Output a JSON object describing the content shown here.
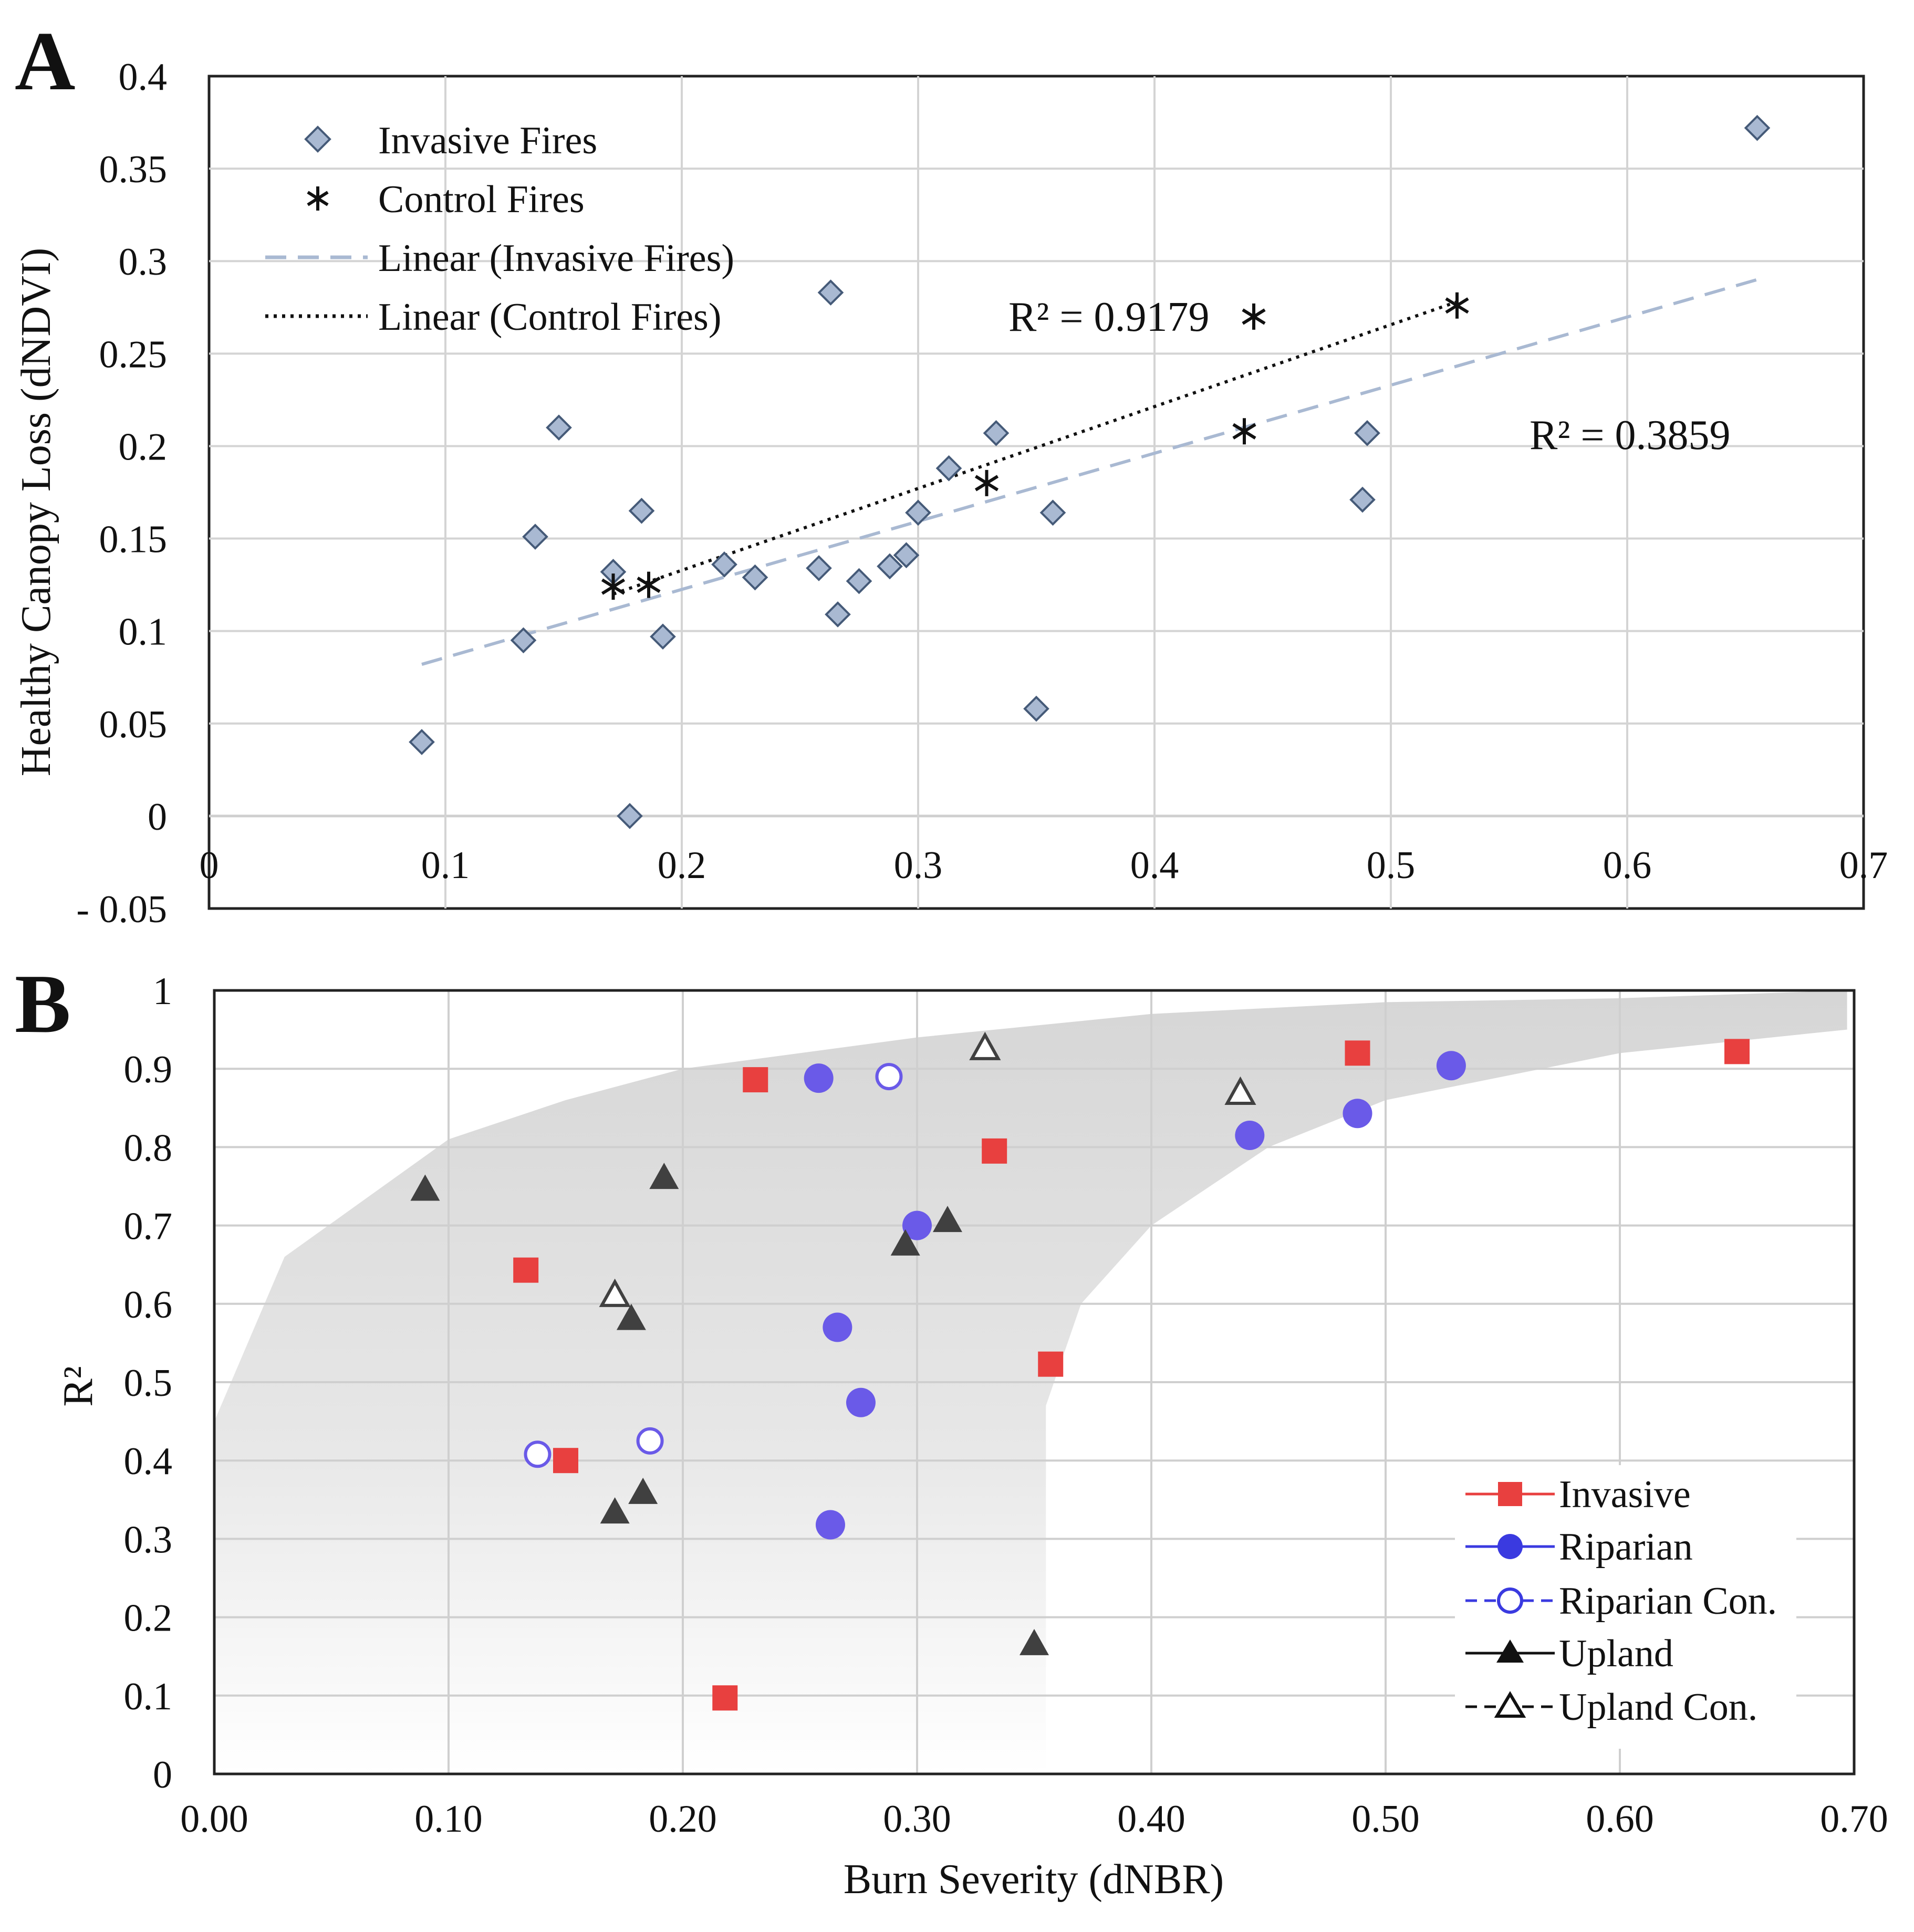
{
  "chart_data": [
    {
      "panel": "A",
      "type": "scatter",
      "ylabel": "Healthy Canopy Loss (dNDVI)",
      "xlabel": "",
      "xlim": [
        0,
        0.7
      ],
      "ylim": [
        -0.05,
        0.4
      ],
      "x_ticks": [
        "0",
        "0.1",
        "0.2",
        "0.3",
        "0.4",
        "0.5",
        "0.6",
        "0.7"
      ],
      "y_ticks": [
        "- 0.05",
        "0",
        "0.05",
        "0.1",
        "0.15",
        "0.2",
        "0.25",
        "0.3",
        "0.35",
        "0.4"
      ],
      "grid": true,
      "legend": {
        "position": "top-left",
        "entries": [
          "Invasive Fires",
          "Control Fires",
          "Linear (Invasive Fires)",
          "Linear (Control Fires)"
        ]
      },
      "series": [
        {
          "name": "Invasive Fires",
          "marker": "diamond",
          "color": "#a9b9d2",
          "points": [
            [
              0.09,
              0.04
            ],
            [
              0.178,
              0.0
            ],
            [
              0.133,
              0.095
            ],
            [
              0.138,
              0.151
            ],
            [
              0.148,
              0.21
            ],
            [
              0.171,
              0.132
            ],
            [
              0.183,
              0.165
            ],
            [
              0.192,
              0.097
            ],
            [
              0.218,
              0.136
            ],
            [
              0.231,
              0.129
            ],
            [
              0.258,
              0.134
            ],
            [
              0.263,
              0.283
            ],
            [
              0.266,
              0.109
            ],
            [
              0.275,
              0.127
            ],
            [
              0.288,
              0.135
            ],
            [
              0.295,
              0.141
            ],
            [
              0.3,
              0.164
            ],
            [
              0.313,
              0.188
            ],
            [
              0.333,
              0.207
            ],
            [
              0.35,
              0.058
            ],
            [
              0.357,
              0.164
            ],
            [
              0.488,
              0.171
            ],
            [
              0.49,
              0.207
            ],
            [
              0.655,
              0.372
            ]
          ]
        },
        {
          "name": "Control Fires",
          "marker": "asterisk",
          "color": "#111111",
          "points": [
            [
              0.171,
              0.124
            ],
            [
              0.186,
              0.125
            ],
            [
              0.329,
              0.18
            ],
            [
              0.438,
              0.208
            ],
            [
              0.442,
              0.27
            ],
            [
              0.528,
              0.276
            ]
          ]
        }
      ],
      "trendlines": [
        {
          "name": "Linear (Invasive Fires)",
          "style": "dashed",
          "color": "#a9b9d2",
          "from": [
            0.09,
            0.082
          ],
          "to": [
            0.655,
            0.29
          ],
          "r2_label": "R² = 0.3859"
        },
        {
          "name": "Linear (Control Fires)",
          "style": "dotted",
          "color": "#111111",
          "from": [
            0.171,
            0.12
          ],
          "to": [
            0.528,
            0.278
          ],
          "r2_label": "R² = 0.9179"
        }
      ]
    },
    {
      "panel": "B",
      "type": "scatter",
      "ylabel": "R²",
      "xlabel": "Burn Severity (dNBR)",
      "xlim": [
        0,
        0.7
      ],
      "ylim": [
        0,
        1
      ],
      "x_ticks": [
        "0.00",
        "0.10",
        "0.20",
        "0.30",
        "0.40",
        "0.50",
        "0.60",
        "0.70"
      ],
      "y_ticks": [
        "0",
        "0.1",
        "0.2",
        "0.3",
        "0.4",
        "0.5",
        "0.6",
        "0.7",
        "0.8",
        "0.9",
        "1"
      ],
      "grid": true,
      "legend": {
        "position": "bottom-right",
        "entries": [
          "Invasive",
          "Riparian",
          "Riparian Con.",
          "Upland",
          "Upland Con."
        ]
      },
      "shaded_envelope": [
        [
          0.0,
          0.0
        ],
        [
          0.0,
          0.45
        ],
        [
          0.03,
          0.66
        ],
        [
          0.1,
          0.81
        ],
        [
          0.15,
          0.86
        ],
        [
          0.2,
          0.9
        ],
        [
          0.3,
          0.94
        ],
        [
          0.4,
          0.97
        ],
        [
          0.5,
          0.985
        ],
        [
          0.6,
          0.99
        ],
        [
          0.697,
          1.0
        ],
        [
          0.697,
          0.95
        ],
        [
          0.6,
          0.92
        ],
        [
          0.5,
          0.86
        ],
        [
          0.45,
          0.8
        ],
        [
          0.4,
          0.7
        ],
        [
          0.37,
          0.6
        ],
        [
          0.355,
          0.47
        ],
        [
          0.355,
          0.0
        ]
      ],
      "series": [
        {
          "name": "Invasive",
          "marker": "square",
          "color": "#e8403f",
          "points": [
            [
              0.133,
              0.643
            ],
            [
              0.15,
              0.4
            ],
            [
              0.218,
              0.097
            ],
            [
              0.231,
              0.886
            ],
            [
              0.333,
              0.795
            ],
            [
              0.357,
              0.523
            ],
            [
              0.488,
              0.92
            ],
            [
              0.65,
              0.922
            ]
          ]
        },
        {
          "name": "Riparian",
          "marker": "circle",
          "color": "#6a5ae8",
          "points": [
            [
              0.258,
              0.888
            ],
            [
              0.263,
              0.318
            ],
            [
              0.266,
              0.57
            ],
            [
              0.276,
              0.474
            ],
            [
              0.3,
              0.7
            ],
            [
              0.442,
              0.815
            ],
            [
              0.488,
              0.843
            ],
            [
              0.528,
              0.904
            ]
          ]
        },
        {
          "name": "Riparian Con.",
          "marker": "circle-open",
          "color": "#6a5ae8",
          "points": [
            [
              0.138,
              0.408
            ],
            [
              0.186,
              0.425
            ],
            [
              0.288,
              0.89
            ]
          ]
        },
        {
          "name": "Upland",
          "marker": "triangle",
          "color": "#404040",
          "points": [
            [
              0.09,
              0.745
            ],
            [
              0.171,
              0.333
            ],
            [
              0.178,
              0.58
            ],
            [
              0.183,
              0.358
            ],
            [
              0.192,
              0.76
            ],
            [
              0.295,
              0.675
            ],
            [
              0.313,
              0.705
            ],
            [
              0.35,
              0.165
            ]
          ]
        },
        {
          "name": "Upland Con.",
          "marker": "triangle-open",
          "color": "#404040",
          "points": [
            [
              0.171,
              0.61
            ],
            [
              0.329,
              0.925
            ],
            [
              0.438,
              0.868
            ]
          ]
        }
      ]
    }
  ]
}
